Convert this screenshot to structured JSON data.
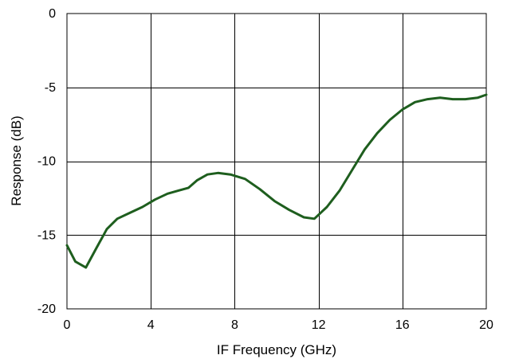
{
  "chart_data": {
    "type": "line",
    "title": "",
    "xlabel": "IF Frequency (GHz)",
    "ylabel": "Response (dB)",
    "xlim": [
      0,
      20
    ],
    "ylim": [
      -20,
      0
    ],
    "x_ticks": [
      0,
      4,
      8,
      12,
      16,
      20
    ],
    "x_tick_labels": [
      "0",
      "4",
      "8",
      "12",
      "16",
      "20"
    ],
    "y_ticks": [
      0,
      -5,
      -10,
      -15,
      -20
    ],
    "y_tick_labels": [
      "0",
      "-5",
      "-10",
      "-15",
      "-20"
    ],
    "grid": true,
    "legend": "none",
    "series": [
      {
        "color": "#1e5e1e",
        "x": [
          0,
          0.4,
          0.9,
          1.4,
          1.9,
          2.4,
          3.0,
          3.6,
          4.2,
          4.8,
          5.3,
          5.8,
          6.2,
          6.7,
          7.2,
          7.8,
          8.5,
          9.2,
          9.9,
          10.6,
          11.3,
          11.8,
          12.4,
          13.0,
          13.6,
          14.2,
          14.8,
          15.4,
          16.0,
          16.6,
          17.2,
          17.8,
          18.4,
          19.0,
          19.6,
          20.0
        ],
        "y": [
          -15.7,
          -16.8,
          -17.2,
          -15.9,
          -14.6,
          -13.9,
          -13.5,
          -13.1,
          -12.6,
          -12.2,
          -12.0,
          -11.8,
          -11.3,
          -10.9,
          -10.8,
          -10.9,
          -11.2,
          -11.9,
          -12.7,
          -13.3,
          -13.8,
          -13.9,
          -13.1,
          -12.0,
          -10.6,
          -9.2,
          -8.1,
          -7.2,
          -6.5,
          -6.0,
          -5.8,
          -5.7,
          -5.8,
          -5.8,
          -5.7,
          -5.5
        ]
      }
    ]
  }
}
